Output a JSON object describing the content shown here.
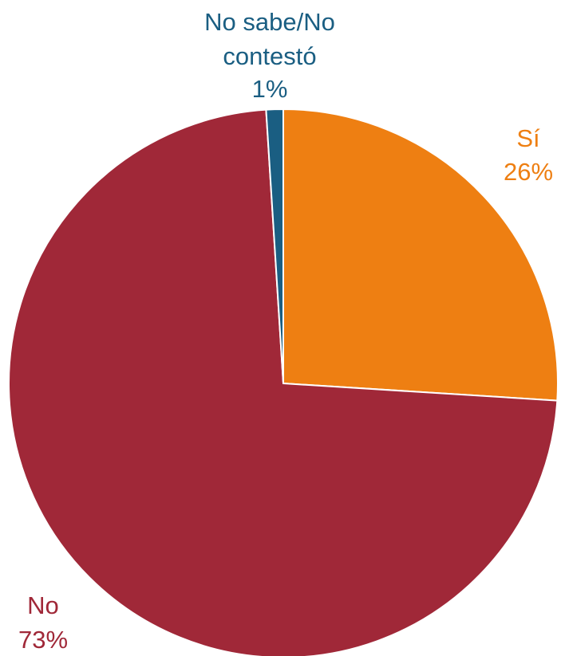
{
  "chart_data": {
    "type": "pie",
    "title": "",
    "legend": "none",
    "slices": [
      {
        "label": "Sí",
        "value": 26,
        "value_label": "26%",
        "color": "#EE7F12"
      },
      {
        "label": "No",
        "value": 73,
        "value_label": "73%",
        "color": "#A02838"
      },
      {
        "label_lines": [
          "No sabe/No",
          "contestó"
        ],
        "label": "No sabe/No contestó",
        "value": 1,
        "value_label": "1%",
        "color": "#1A5E82"
      }
    ]
  }
}
